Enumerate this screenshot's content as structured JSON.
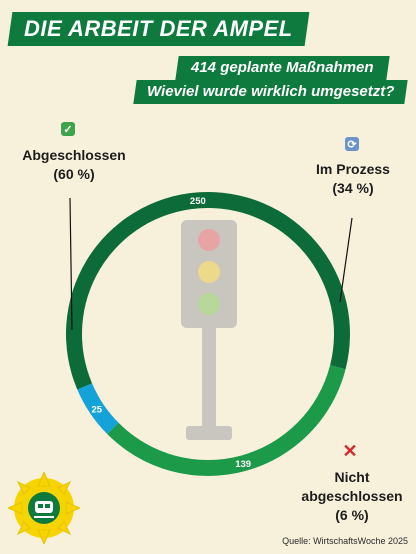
{
  "header": {
    "title": "DIE ARBEIT DER AMPEL",
    "subtitle_line1": "414 geplante Maßnahmen",
    "subtitle_line2": "Wieviel wurde wirklich umgesetzt?"
  },
  "chart_data": {
    "type": "pie",
    "total": 414,
    "slices": [
      {
        "label_line1": "Abgeschlossen",
        "label_line2": "(60 %)",
        "value": 250,
        "value_label": "250",
        "color": "#0d6b3a",
        "icon": "check-icon"
      },
      {
        "label_line1": "Im Prozess",
        "label_line2": "(34 %)",
        "value": 139,
        "value_label": "139",
        "color": "#1c9a4a",
        "icon": "refresh-icon"
      },
      {
        "label_line1": "Nicht",
        "label_line1b": "abgeschlossen",
        "label_line2": "(6 %)",
        "value": 25,
        "value_label": "25",
        "color": "#14a3d8",
        "icon": "cross-icon"
      }
    ]
  },
  "footer": {
    "source": "Quelle: WirtschaftsWoche 2025"
  },
  "icons": {
    "logo": "sunflower-train-logo",
    "center": "traffic-light-icon"
  },
  "colors": {
    "background": "#f7f1dc",
    "banner": "#0e7a3e"
  }
}
